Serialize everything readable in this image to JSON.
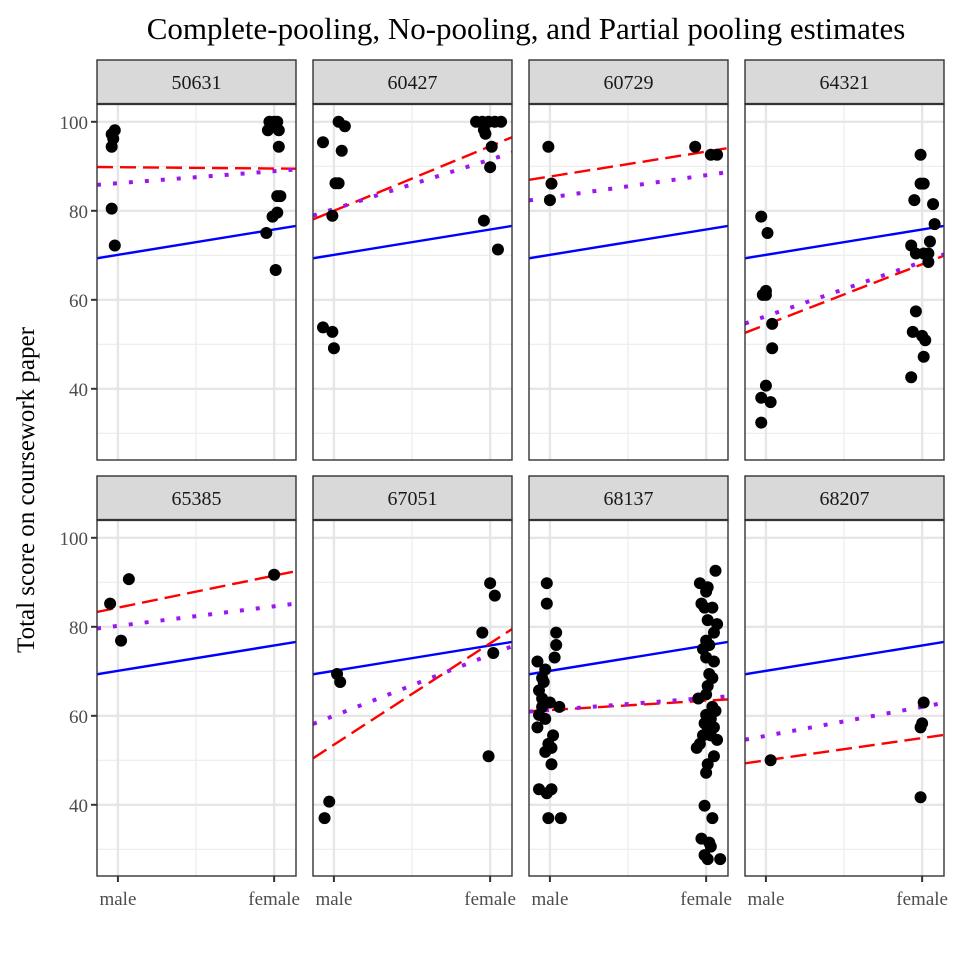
{
  "chart_data": {
    "type": "scatter",
    "title": "Complete-pooling, No-pooling, and Partial pooling estimates",
    "xlabel": "",
    "ylabel": "Total score on coursework paper",
    "x_categories": [
      "male",
      "female"
    ],
    "ylim": [
      24,
      104
    ],
    "y_ticks": [
      40,
      60,
      80,
      100
    ],
    "y_minor_ticks": [
      30,
      50,
      70,
      90
    ],
    "grid": true,
    "legend": "none",
    "facet_layout": "2 rows x 4 columns",
    "line_styles": {
      "complete_pooling": {
        "color": "#0000ff",
        "dash": "solid"
      },
      "no_pooling": {
        "color": "#ff0000",
        "dash": "dashed"
      },
      "partial_pooling": {
        "color": "#9a17f0",
        "dash": "dotted"
      }
    },
    "point_color": "#000000",
    "panels": [
      {
        "label": "50631",
        "lines": {
          "complete_pooling": [
            70.1,
            75.8
          ],
          "no_pooling": [
            89.8,
            89.5
          ],
          "partial_pooling": [
            86.2,
            88.9
          ]
        },
        "points": [
          {
            "x": 0.98,
            "y": 98.1
          },
          {
            "x": 0.96,
            "y": 97.2
          },
          {
            "x": 0.97,
            "y": 96.2
          },
          {
            "x": 0.96,
            "y": 94.4
          },
          {
            "x": 0.96,
            "y": 80.5
          },
          {
            "x": 0.98,
            "y": 72.2
          },
          {
            "x": 1.97,
            "y": 100
          },
          {
            "x": 2.02,
            "y": 100
          },
          {
            "x": 2.0,
            "y": 100
          },
          {
            "x": 1.96,
            "y": 98.1
          },
          {
            "x": 2.03,
            "y": 98.1
          },
          {
            "x": 2.03,
            "y": 94.4
          },
          {
            "x": 2.02,
            "y": 83.3
          },
          {
            "x": 2.04,
            "y": 83.3
          },
          {
            "x": 2.02,
            "y": 79.6
          },
          {
            "x": 1.99,
            "y": 78.7
          },
          {
            "x": 1.95,
            "y": 75.0
          },
          {
            "x": 2.01,
            "y": 66.7
          }
        ]
      },
      {
        "label": "60427",
        "lines": {
          "complete_pooling": [
            70.1,
            75.8
          ],
          "no_pooling": [
            80.0,
            94.5
          ],
          "partial_pooling": [
            80.4,
            91.5
          ]
        },
        "points": [
          {
            "x": 1.03,
            "y": 100
          },
          {
            "x": 1.07,
            "y": 99.0
          },
          {
            "x": 0.93,
            "y": 95.4
          },
          {
            "x": 1.05,
            "y": 93.5
          },
          {
            "x": 1.01,
            "y": 86.2
          },
          {
            "x": 1.03,
            "y": 86.2
          },
          {
            "x": 0.99,
            "y": 78.9
          },
          {
            "x": 0.93,
            "y": 53.8
          },
          {
            "x": 0.99,
            "y": 52.8
          },
          {
            "x": 1.0,
            "y": 49.1
          },
          {
            "x": 1.91,
            "y": 100
          },
          {
            "x": 1.95,
            "y": 100
          },
          {
            "x": 1.99,
            "y": 100
          },
          {
            "x": 2.03,
            "y": 100
          },
          {
            "x": 2.07,
            "y": 100
          },
          {
            "x": 1.96,
            "y": 98.2
          },
          {
            "x": 1.97,
            "y": 97.3
          },
          {
            "x": 2.01,
            "y": 94.4
          },
          {
            "x": 2.0,
            "y": 89.8
          },
          {
            "x": 1.96,
            "y": 77.8
          },
          {
            "x": 2.05,
            "y": 71.3
          }
        ]
      },
      {
        "label": "60729",
        "lines": {
          "complete_pooling": [
            70.1,
            75.8
          ],
          "no_pooling": [
            87.7,
            93.3
          ],
          "partial_pooling": [
            83.0,
            88.0
          ]
        },
        "points": [
          {
            "x": 0.99,
            "y": 94.4
          },
          {
            "x": 1.01,
            "y": 86.1
          },
          {
            "x": 1.0,
            "y": 82.4
          },
          {
            "x": 1.93,
            "y": 94.4
          },
          {
            "x": 2.03,
            "y": 92.6
          },
          {
            "x": 2.07,
            "y": 92.6
          }
        ]
      },
      {
        "label": "64321",
        "lines": {
          "complete_pooling": [
            70.1,
            75.8
          ],
          "no_pooling": [
            54.4,
            68.0
          ],
          "partial_pooling": [
            56.3,
            68.5
          ]
        },
        "points": [
          {
            "x": 0.97,
            "y": 78.7
          },
          {
            "x": 1.01,
            "y": 75.0
          },
          {
            "x": 1.0,
            "y": 62.0
          },
          {
            "x": 0.98,
            "y": 61.1
          },
          {
            "x": 1.0,
            "y": 61.1
          },
          {
            "x": 1.04,
            "y": 54.6
          },
          {
            "x": 1.04,
            "y": 49.1
          },
          {
            "x": 1.0,
            "y": 40.7
          },
          {
            "x": 0.97,
            "y": 38.0
          },
          {
            "x": 1.03,
            "y": 37.0
          },
          {
            "x": 0.97,
            "y": 32.4
          },
          {
            "x": 1.99,
            "y": 92.6
          },
          {
            "x": 1.99,
            "y": 86.1
          },
          {
            "x": 2.01,
            "y": 86.1
          },
          {
            "x": 1.95,
            "y": 82.4
          },
          {
            "x": 2.07,
            "y": 81.5
          },
          {
            "x": 2.08,
            "y": 77.0
          },
          {
            "x": 2.05,
            "y": 73.1
          },
          {
            "x": 1.93,
            "y": 72.2
          },
          {
            "x": 1.96,
            "y": 70.4
          },
          {
            "x": 2.01,
            "y": 70.4
          },
          {
            "x": 2.04,
            "y": 70.4
          },
          {
            "x": 2.04,
            "y": 68.5
          },
          {
            "x": 1.96,
            "y": 57.4
          },
          {
            "x": 1.94,
            "y": 52.8
          },
          {
            "x": 2.0,
            "y": 51.9
          },
          {
            "x": 2.02,
            "y": 50.9
          },
          {
            "x": 2.01,
            "y": 47.2
          },
          {
            "x": 1.93,
            "y": 42.6
          }
        ]
      },
      {
        "label": "65385",
        "lines": {
          "complete_pooling": [
            70.1,
            75.8
          ],
          "no_pooling": [
            84.3,
            91.5
          ],
          "partial_pooling": [
            80.2,
            84.6
          ]
        },
        "points": [
          {
            "x": 1.07,
            "y": 90.7
          },
          {
            "x": 0.95,
            "y": 85.2
          },
          {
            "x": 1.02,
            "y": 76.9
          },
          {
            "x": 2.0,
            "y": 91.7
          }
        ]
      },
      {
        "label": "67051",
        "lines": {
          "complete_pooling": [
            70.1,
            75.8
          ],
          "no_pooling": [
            53.5,
            76.3
          ],
          "partial_pooling": [
            60.0,
            73.7
          ]
        },
        "points": [
          {
            "x": 1.02,
            "y": 69.4
          },
          {
            "x": 1.04,
            "y": 67.6
          },
          {
            "x": 0.97,
            "y": 40.7
          },
          {
            "x": 0.94,
            "y": 37.0
          },
          {
            "x": 2.0,
            "y": 89.8
          },
          {
            "x": 2.03,
            "y": 87.0
          },
          {
            "x": 1.95,
            "y": 78.7
          },
          {
            "x": 2.02,
            "y": 74.1
          },
          {
            "x": 1.99,
            "y": 50.9
          }
        ]
      },
      {
        "label": "68137",
        "lines": {
          "complete_pooling": [
            70.1,
            75.8
          ],
          "no_pooling": [
            61.3,
            63.4
          ],
          "partial_pooling": [
            61.3,
            64.0
          ]
        },
        "points": [
          {
            "x": 0.98,
            "y": 89.8
          },
          {
            "x": 0.98,
            "y": 85.2
          },
          {
            "x": 1.04,
            "y": 78.7
          },
          {
            "x": 1.04,
            "y": 75.9
          },
          {
            "x": 1.03,
            "y": 73.1
          },
          {
            "x": 0.92,
            "y": 72.2
          },
          {
            "x": 0.97,
            "y": 70.4
          },
          {
            "x": 0.95,
            "y": 68.5
          },
          {
            "x": 0.96,
            "y": 67.6
          },
          {
            "x": 0.93,
            "y": 65.7
          },
          {
            "x": 0.95,
            "y": 63.9
          },
          {
            "x": 1.0,
            "y": 63.0
          },
          {
            "x": 0.95,
            "y": 62.0
          },
          {
            "x": 1.06,
            "y": 62.0
          },
          {
            "x": 0.93,
            "y": 60.2
          },
          {
            "x": 0.97,
            "y": 59.3
          },
          {
            "x": 0.92,
            "y": 57.4
          },
          {
            "x": 1.02,
            "y": 55.6
          },
          {
            "x": 0.99,
            "y": 53.7
          },
          {
            "x": 1.01,
            "y": 52.8
          },
          {
            "x": 0.97,
            "y": 51.9
          },
          {
            "x": 1.01,
            "y": 49.1
          },
          {
            "x": 0.93,
            "y": 43.5
          },
          {
            "x": 1.01,
            "y": 43.5
          },
          {
            "x": 0.98,
            "y": 42.6
          },
          {
            "x": 0.99,
            "y": 37.0
          },
          {
            "x": 1.07,
            "y": 37.0
          },
          {
            "x": 2.06,
            "y": 92.6
          },
          {
            "x": 1.96,
            "y": 89.8
          },
          {
            "x": 2.01,
            "y": 88.9
          },
          {
            "x": 2.0,
            "y": 87.9
          },
          {
            "x": 1.97,
            "y": 85.2
          },
          {
            "x": 1.99,
            "y": 84.3
          },
          {
            "x": 2.04,
            "y": 84.3
          },
          {
            "x": 2.01,
            "y": 81.5
          },
          {
            "x": 2.07,
            "y": 80.6
          },
          {
            "x": 2.05,
            "y": 78.7
          },
          {
            "x": 2.0,
            "y": 76.9
          },
          {
            "x": 2.02,
            "y": 75.9
          },
          {
            "x": 1.98,
            "y": 75.0
          },
          {
            "x": 2.0,
            "y": 73.1
          },
          {
            "x": 2.05,
            "y": 72.2
          },
          {
            "x": 2.02,
            "y": 69.4
          },
          {
            "x": 2.04,
            "y": 68.5
          },
          {
            "x": 2.01,
            "y": 66.7
          },
          {
            "x": 2.0,
            "y": 64.8
          },
          {
            "x": 1.95,
            "y": 63.9
          },
          {
            "x": 2.04,
            "y": 62.0
          },
          {
            "x": 2.06,
            "y": 61.1
          },
          {
            "x": 2.0,
            "y": 60.2
          },
          {
            "x": 2.03,
            "y": 59.3
          },
          {
            "x": 1.99,
            "y": 58.3
          },
          {
            "x": 2.05,
            "y": 57.4
          },
          {
            "x": 2.01,
            "y": 56.5
          },
          {
            "x": 1.98,
            "y": 55.6
          },
          {
            "x": 2.03,
            "y": 55.6
          },
          {
            "x": 2.07,
            "y": 54.6
          },
          {
            "x": 1.96,
            "y": 53.7
          },
          {
            "x": 1.94,
            "y": 52.8
          },
          {
            "x": 2.05,
            "y": 50.9
          },
          {
            "x": 2.01,
            "y": 49.1
          },
          {
            "x": 2.0,
            "y": 47.2
          },
          {
            "x": 1.99,
            "y": 39.8
          },
          {
            "x": 2.04,
            "y": 37.0
          },
          {
            "x": 1.97,
            "y": 32.4
          },
          {
            "x": 2.02,
            "y": 31.5
          },
          {
            "x": 2.03,
            "y": 30.6
          },
          {
            "x": 1.99,
            "y": 28.7
          },
          {
            "x": 2.01,
            "y": 27.8
          },
          {
            "x": 2.09,
            "y": 27.8
          }
        ]
      },
      {
        "label": "68207",
        "lines": {
          "complete_pooling": [
            70.1,
            75.8
          ],
          "no_pooling": [
            50.0,
            55.0
          ],
          "partial_pooling": [
            55.5,
            62.0
          ]
        },
        "points": [
          {
            "x": 1.03,
            "y": 50.0
          },
          {
            "x": 2.01,
            "y": 63.0
          },
          {
            "x": 2.0,
            "y": 58.3
          },
          {
            "x": 1.99,
            "y": 57.4
          },
          {
            "x": 1.99,
            "y": 41.7
          }
        ]
      }
    ]
  }
}
